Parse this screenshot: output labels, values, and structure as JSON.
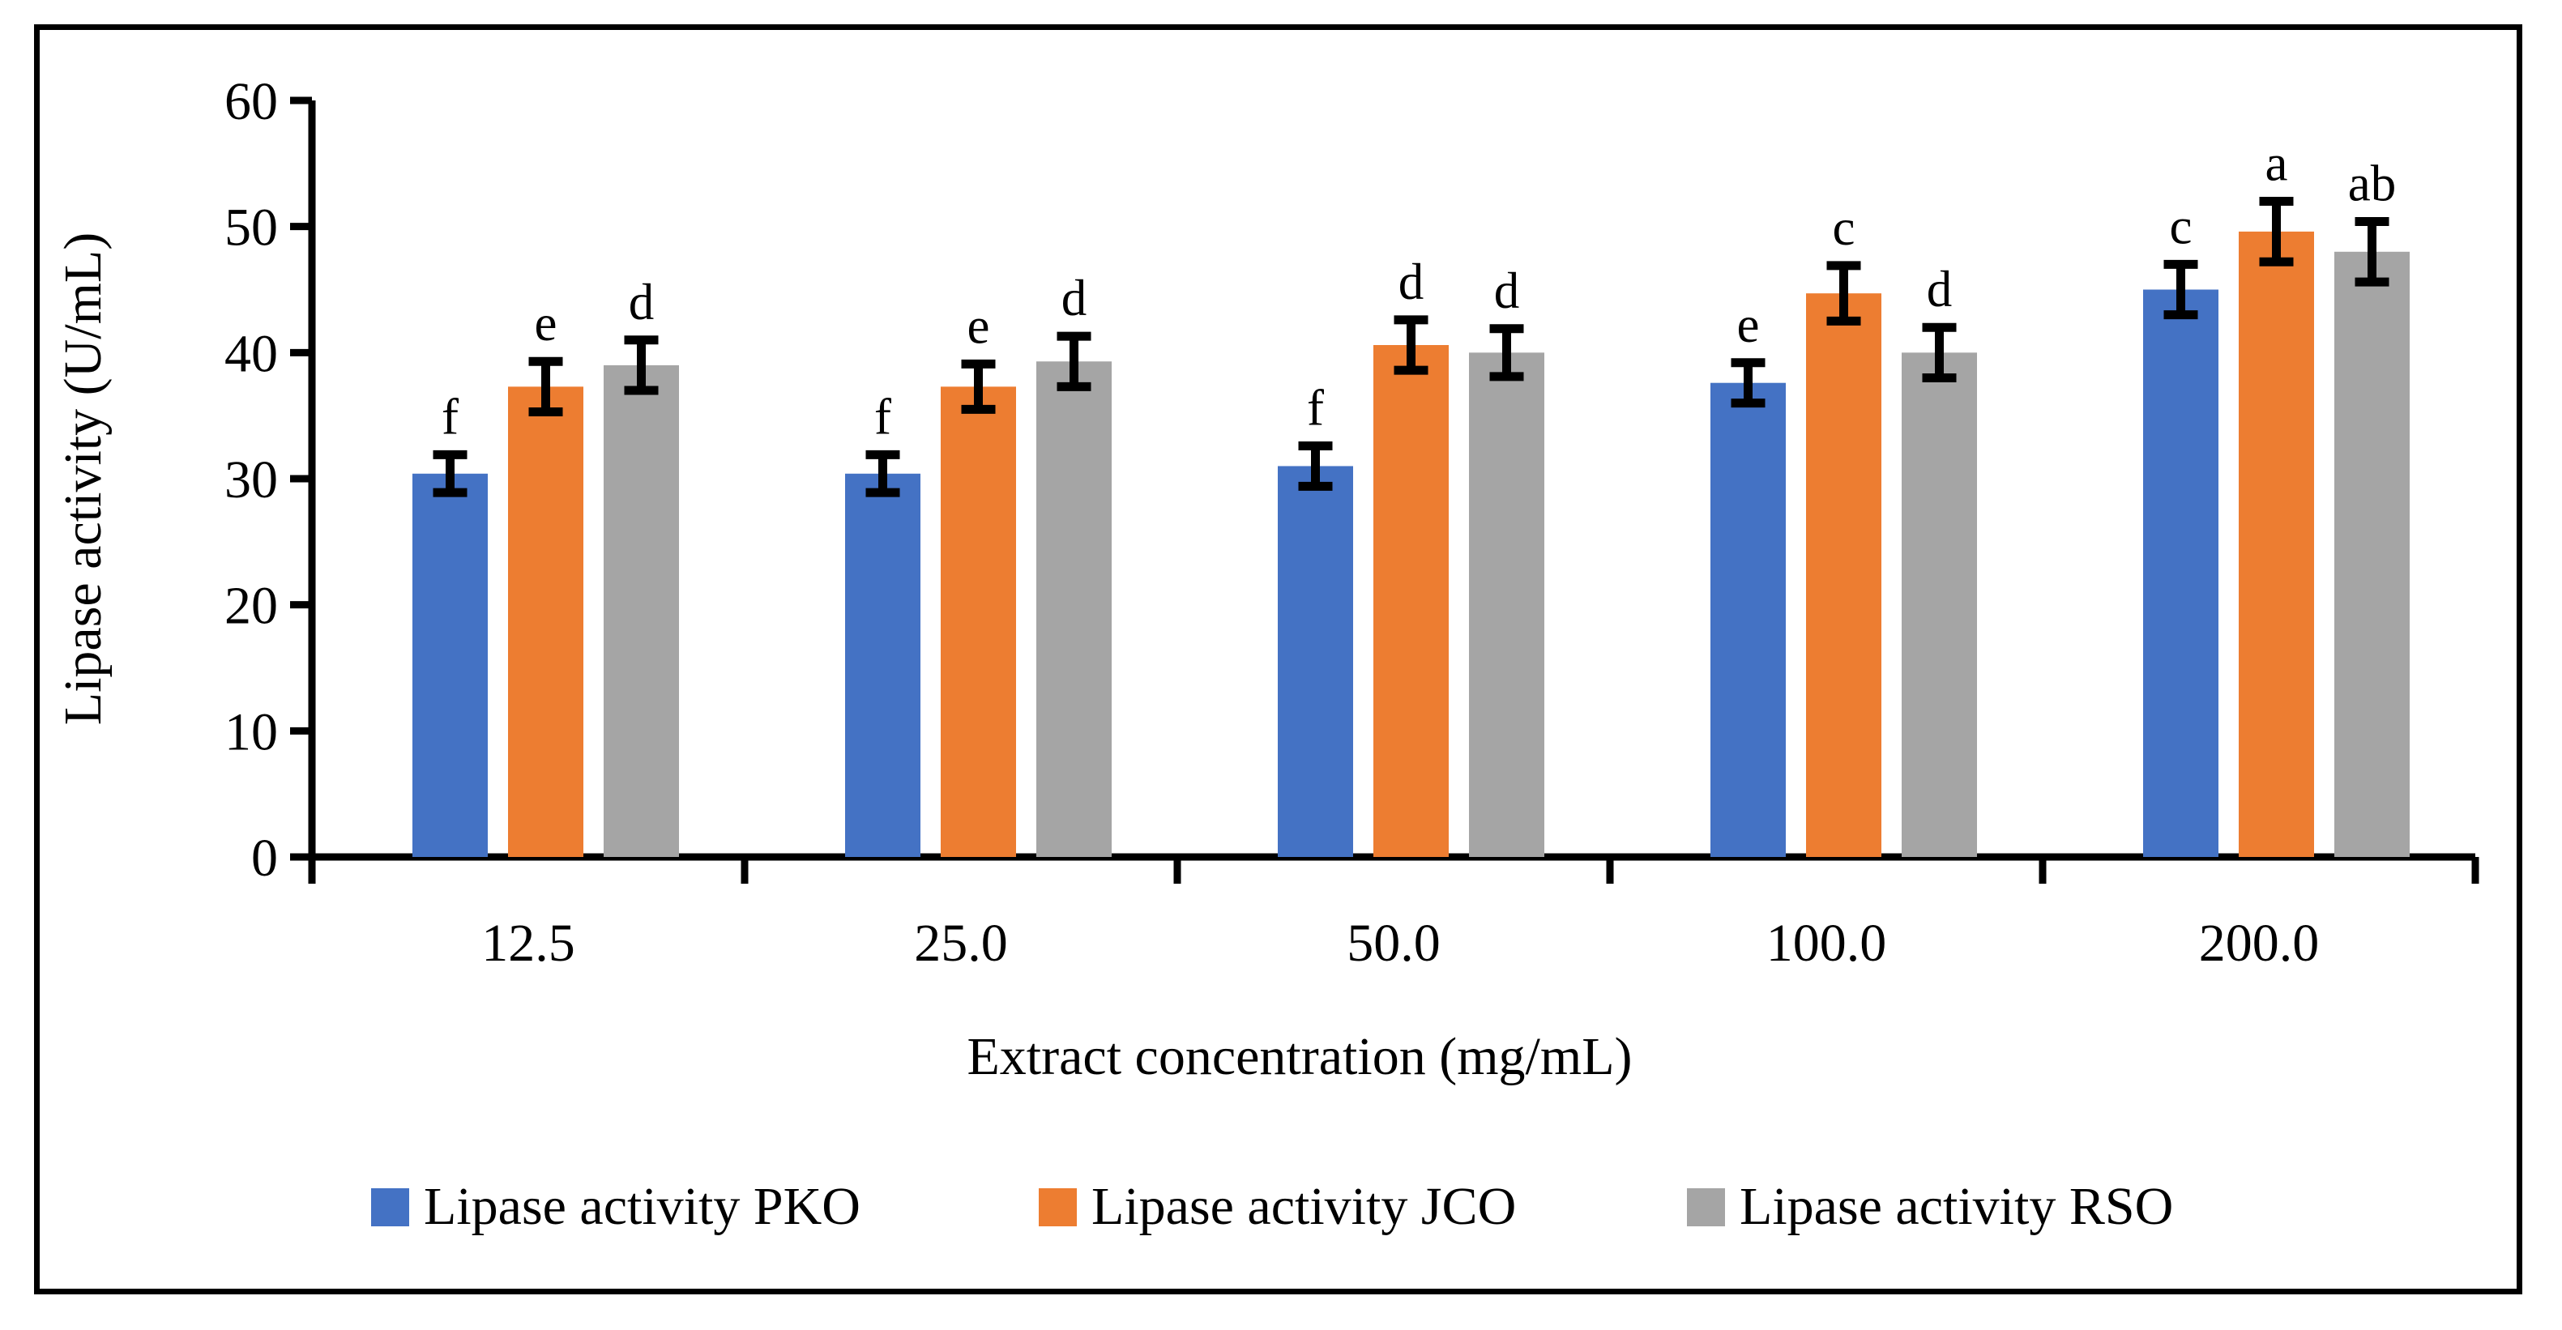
{
  "figure": {
    "background": "#ffffff",
    "border_color": "#000000"
  },
  "chart_data": {
    "type": "bar",
    "title": "",
    "xlabel": "Extract concentration (mg/mL)",
    "ylabel": "Lipase activity (U/mL)",
    "categories": [
      "12.5",
      "25.0",
      "50.0",
      "100.0",
      "200.0"
    ],
    "ylim": [
      0,
      60
    ],
    "ytick_step": 10,
    "ytick_labels": [
      "0",
      "10",
      "20",
      "30",
      "40",
      "50",
      "60"
    ],
    "grid": false,
    "legend_position": "bottom",
    "axis_color": "#000000",
    "error_bar_color": "#000000",
    "sig_letter_color": "#000000",
    "series": [
      {
        "name": "Lipase activity PKO",
        "color": "#4472C4",
        "values": [
          30.4,
          30.4,
          31.0,
          37.6,
          45.0
        ],
        "errors": [
          1.5,
          1.5,
          1.6,
          1.6,
          2.0
        ],
        "letters": [
          "f",
          "f",
          "f",
          "e",
          "c"
        ]
      },
      {
        "name": "Lipase activity JCO",
        "color": "#ED7D31",
        "values": [
          37.3,
          37.3,
          40.6,
          44.7,
          49.6
        ],
        "errors": [
          2.0,
          1.8,
          2.0,
          2.2,
          2.4
        ],
        "letters": [
          "e",
          "e",
          "d",
          "c",
          "a"
        ]
      },
      {
        "name": "Lipase activity RSO",
        "color": "#A5A5A5",
        "values": [
          39.0,
          39.3,
          40.0,
          40.0,
          48.0
        ],
        "errors": [
          2.0,
          2.0,
          1.9,
          2.0,
          2.4
        ],
        "letters": [
          "d",
          "d",
          "d",
          "d",
          "ab"
        ]
      }
    ]
  }
}
